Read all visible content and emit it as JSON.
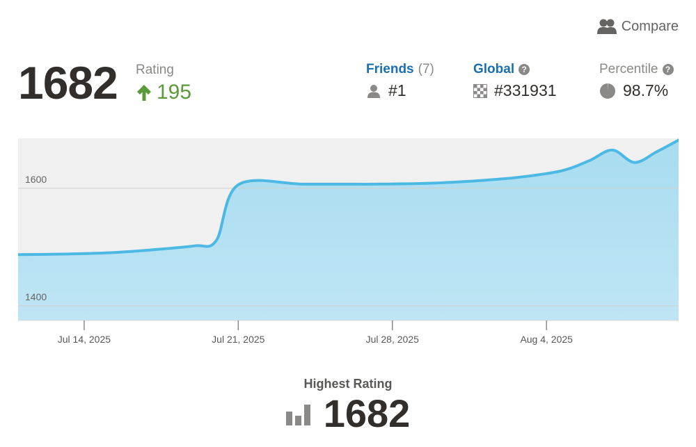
{
  "header": {
    "compare_label": "Compare",
    "compare_icon": "users-icon"
  },
  "rating": {
    "value": "1682",
    "label": "Rating",
    "change": "195",
    "change_icon": "arrow-up-icon",
    "change_color": "#5a9a3a"
  },
  "stats": {
    "friends": {
      "label": "Friends",
      "count": "(7)",
      "value": "#1",
      "icon": "user-icon"
    },
    "global": {
      "label": "Global",
      "help": "?",
      "value": "#331931",
      "icon": "checkerboard-icon"
    },
    "percentile": {
      "label": "Percentile",
      "help": "?",
      "value": "98.7%",
      "icon": "pie-icon"
    }
  },
  "chart_data": {
    "type": "area",
    "x_ticks": [
      "Jul 14, 2025",
      "Jul 21, 2025",
      "Jul 28, 2025",
      "Aug 4, 2025"
    ],
    "y_ticks": [
      1400,
      1600
    ],
    "x_range": [
      "2025-07-11",
      "2025-08-10"
    ],
    "ylim": [
      1375,
      1685
    ],
    "grid": "horizontal",
    "fill_color": "#a8dcf0",
    "line_color": "#4cb8e4",
    "points": [
      {
        "x": "2025-07-11",
        "y": 1487
      },
      {
        "x": "2025-07-13",
        "y": 1488
      },
      {
        "x": "2025-07-15",
        "y": 1490
      },
      {
        "x": "2025-07-17",
        "y": 1495
      },
      {
        "x": "2025-07-19",
        "y": 1502
      },
      {
        "x": "2025-07-20",
        "y": 1511
      },
      {
        "x": "2025-07-21",
        "y": 1606
      },
      {
        "x": "2025-07-24",
        "y": 1607
      },
      {
        "x": "2025-07-27",
        "y": 1607
      },
      {
        "x": "2025-07-30",
        "y": 1609
      },
      {
        "x": "2025-08-02",
        "y": 1616
      },
      {
        "x": "2025-08-04",
        "y": 1625
      },
      {
        "x": "2025-08-05",
        "y": 1633
      },
      {
        "x": "2025-08-06",
        "y": 1648
      },
      {
        "x": "2025-08-07",
        "y": 1665
      },
      {
        "x": "2025-08-08",
        "y": 1644
      },
      {
        "x": "2025-08-09",
        "y": 1662
      },
      {
        "x": "2025-08-10",
        "y": 1682
      }
    ]
  },
  "highest": {
    "label": "Highest Rating",
    "value": "1682",
    "icon": "bar-chart-icon"
  }
}
